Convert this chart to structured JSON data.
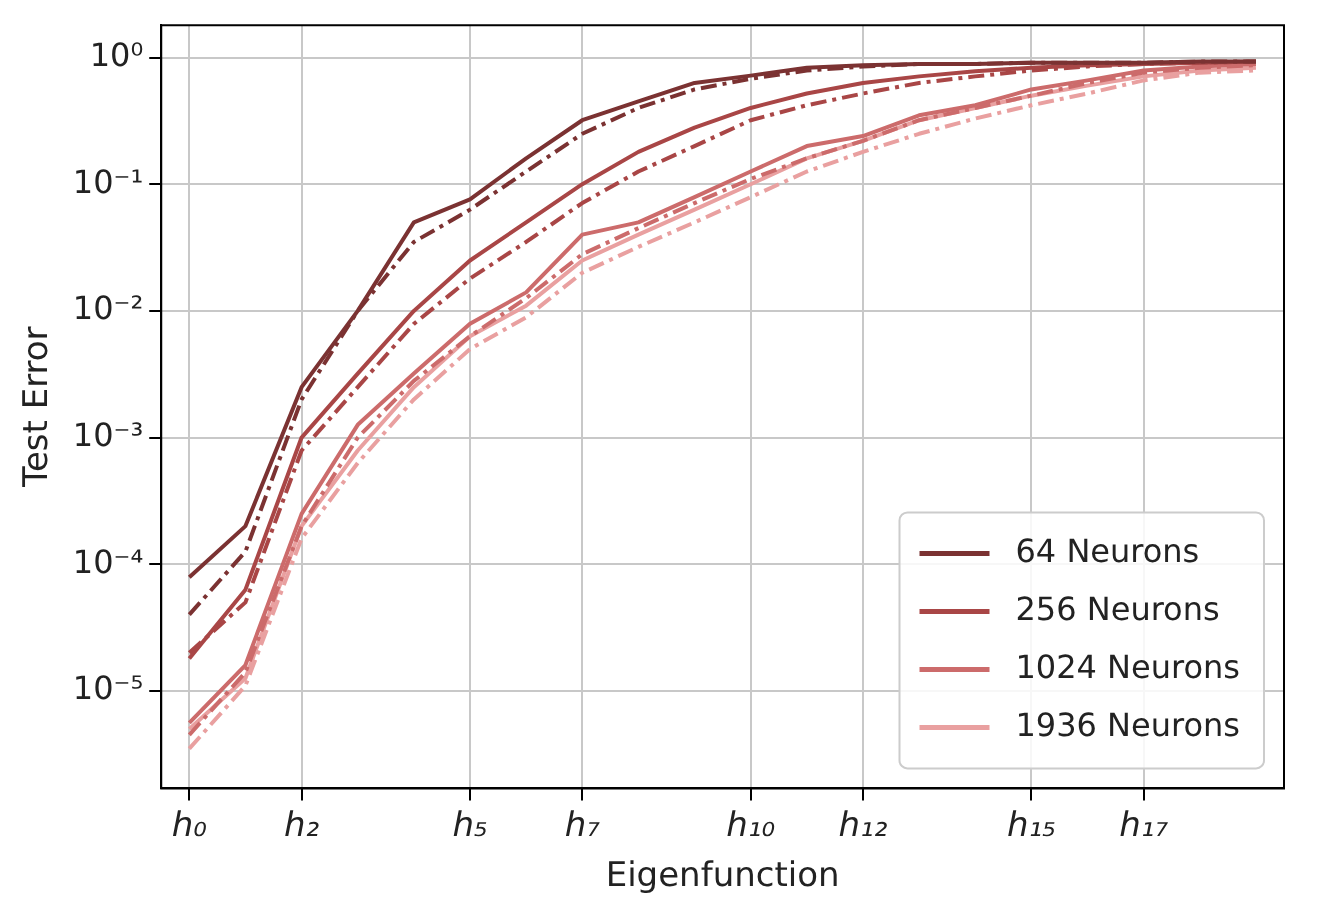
{
  "chart_data": {
    "type": "line",
    "xlabel": "Eigenfunction",
    "ylabel": "Test Error",
    "log": "y",
    "grid": true,
    "legend": "bottom right",
    "marker": "none",
    "categories": [
      "h₀",
      null,
      "h₂",
      null,
      null,
      "h₅",
      null,
      "h₇",
      null,
      null,
      "h₁₀",
      null,
      "h₁₂",
      null,
      null,
      "h₁₅",
      null,
      "h₁₇",
      null,
      null
    ],
    "ylim": [
      1.7e-06,
      1.8
    ],
    "yticks": [
      {
        "value": 1e-05,
        "label": "10⁻⁵"
      },
      {
        "value": 0.0001,
        "label": "10⁻⁴"
      },
      {
        "value": 0.001,
        "label": "10⁻³"
      },
      {
        "value": 0.01,
        "label": "10⁻²"
      },
      {
        "value": 0.1,
        "label": "10⁻¹"
      },
      {
        "value": 1,
        "label": "10⁰"
      }
    ],
    "series": [
      {
        "name": "64 Neurons",
        "color": "#7b3232",
        "line_style": "solid",
        "values": [
          7.9e-05,
          0.0002,
          0.0025,
          0.01,
          0.05,
          0.076,
          0.16,
          0.32,
          0.45,
          0.63,
          0.72,
          0.83,
          0.87,
          0.89,
          0.89,
          0.91,
          0.91,
          0.91,
          0.93,
          0.93
        ]
      },
      {
        "color": "#7b3232",
        "line_style": "dashed",
        "values": [
          4e-05,
          0.000126,
          0.002,
          0.01,
          0.035,
          0.063,
          0.126,
          0.25,
          0.4,
          0.56,
          0.68,
          0.79,
          0.85,
          0.89,
          0.89,
          0.91,
          0.91,
          0.91,
          0.93,
          0.93
        ]
      },
      {
        "name": "256 Neurons",
        "color": "#a94646",
        "line_style": "solid",
        "values": [
          1.8e-05,
          6.3e-05,
          0.001,
          0.0032,
          0.01,
          0.025,
          0.05,
          0.1,
          0.18,
          0.28,
          0.4,
          0.52,
          0.63,
          0.71,
          0.78,
          0.83,
          0.87,
          0.89,
          0.91,
          0.93
        ]
      },
      {
        "color": "#a94646",
        "line_style": "dashed",
        "values": [
          2e-05,
          5e-05,
          0.00079,
          0.0025,
          0.0079,
          0.018,
          0.035,
          0.071,
          0.126,
          0.2,
          0.32,
          0.42,
          0.52,
          0.63,
          0.71,
          0.79,
          0.85,
          0.89,
          0.91,
          0.93
        ]
      },
      {
        "name": "1024 Neurons",
        "color": "#cc6b6b",
        "line_style": "solid",
        "values": [
          5.6e-06,
          1.6e-05,
          0.00025,
          0.00126,
          0.0032,
          0.0079,
          0.014,
          0.04,
          0.05,
          0.079,
          0.126,
          0.2,
          0.24,
          0.35,
          0.42,
          0.56,
          0.66,
          0.79,
          0.85,
          0.89
        ]
      },
      {
        "color": "#cc6b6b",
        "line_style": "dashed",
        "values": [
          4.5e-06,
          1.4e-05,
          0.0002,
          0.001,
          0.0028,
          0.0063,
          0.0126,
          0.028,
          0.045,
          0.071,
          0.11,
          0.16,
          0.22,
          0.32,
          0.4,
          0.5,
          0.63,
          0.76,
          0.83,
          0.87
        ]
      },
      {
        "name": "1936 Neurons",
        "color": "#e9a0a0",
        "line_style": "solid",
        "values": [
          5e-06,
          1.26e-05,
          0.0002,
          0.00079,
          0.0025,
          0.0063,
          0.011,
          0.025,
          0.04,
          0.063,
          0.1,
          0.16,
          0.22,
          0.32,
          0.4,
          0.5,
          0.6,
          0.71,
          0.79,
          0.83
        ]
      },
      {
        "color": "#e9a0a0",
        "line_style": "dashed",
        "values": [
          3.5e-06,
          1.1e-05,
          0.00016,
          0.00063,
          0.002,
          0.005,
          0.0089,
          0.02,
          0.032,
          0.05,
          0.079,
          0.126,
          0.18,
          0.25,
          0.33,
          0.42,
          0.52,
          0.66,
          0.76,
          0.79
        ]
      }
    ]
  }
}
